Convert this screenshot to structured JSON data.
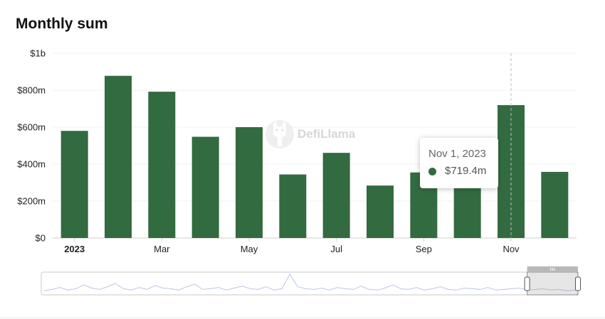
{
  "title": "Monthly sum",
  "watermark": {
    "text": "DefiLlama",
    "icon": "llama-logo-icon"
  },
  "tooltip": {
    "date": "Nov 1, 2023",
    "value": "$719.4m",
    "marker_color": "#336b40"
  },
  "colors": {
    "bar": "#336b40",
    "grid": "#f0f0f0",
    "axis": "#cfcfcf",
    "pointer_line": "#bdbdbd",
    "slider_line": "#b9c6e6"
  },
  "chart_data": {
    "type": "bar",
    "title": "Monthly sum",
    "xlabel": "",
    "ylabel": "",
    "categories": [
      "2023-01",
      "2023-02",
      "2023-03",
      "2023-04",
      "2023-05",
      "2023-06",
      "2023-07",
      "2023-08",
      "2023-09",
      "2023-10",
      "2023-11",
      "2023-12"
    ],
    "values": [
      580,
      878,
      792,
      548,
      600,
      344,
      461,
      284,
      355,
      360,
      719.4,
      358
    ],
    "value_unit": "millions USD",
    "ylim": [
      0,
      1000
    ],
    "y_ticks": [
      0,
      200,
      400,
      600,
      800,
      1000
    ],
    "y_tick_labels": [
      "$0",
      "$200m",
      "$400m",
      "$600m",
      "$800m",
      "$1b"
    ],
    "x_tick_labels": [
      {
        "category_index": 0,
        "label": "2023",
        "bold": true
      },
      {
        "category_index": 2,
        "label": "Mar",
        "bold": false
      },
      {
        "category_index": 4,
        "label": "May",
        "bold": false
      },
      {
        "category_index": 6,
        "label": "Jul",
        "bold": false
      },
      {
        "category_index": 8,
        "label": "Sep",
        "bold": false
      },
      {
        "category_index": 10,
        "label": "Nov",
        "bold": false
      }
    ],
    "grid": true,
    "legend": "none",
    "highlighted_index": 10,
    "zoom_window": {
      "start_fraction": 0.9,
      "end_fraction": 1.0
    },
    "overview_series": [
      3,
      5,
      8,
      4,
      6,
      12,
      7,
      5,
      9,
      14,
      6,
      4,
      8,
      5,
      11,
      7,
      6,
      4,
      9,
      13,
      5,
      6,
      8,
      4,
      7,
      10,
      6,
      5,
      9,
      4,
      6,
      28,
      9,
      6,
      5,
      7,
      4,
      8,
      6,
      5,
      10,
      5,
      4,
      7,
      12,
      6,
      5,
      8,
      4,
      6,
      9,
      5,
      4,
      7,
      6,
      5,
      8,
      4,
      5,
      6,
      7,
      4,
      5,
      6,
      4,
      5,
      3,
      4
    ]
  }
}
